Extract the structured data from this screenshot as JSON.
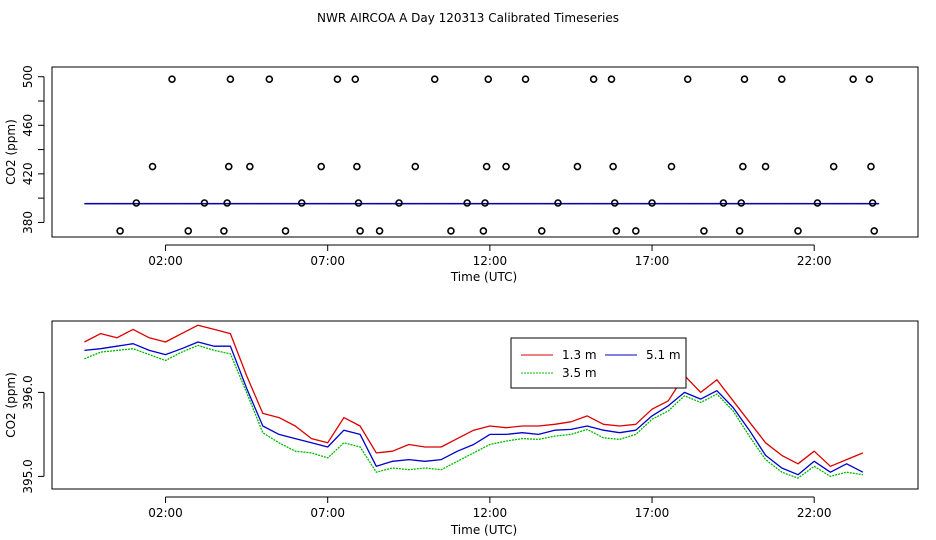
{
  "title": "NWR AIRCOA A  Day 120313  Calibrated Timeseries",
  "colors": {
    "s1": "#dd0000",
    "s2": "#00bb00",
    "s3": "#0000cc"
  },
  "chart_data": [
    {
      "type": "scatter",
      "title": "NWR AIRCOA A  Day 120313  Calibrated Timeseries",
      "xlabel": "Time (UTC)",
      "ylabel": "CO2 (ppm)",
      "xlim": [
        -1.5,
        25.2
      ],
      "ylim": [
        368,
        508
      ],
      "xticks": [
        2,
        7,
        12,
        17,
        22
      ],
      "xtick_labels": [
        "02:00",
        "07:00",
        "12:00",
        "17:00",
        "22:00"
      ],
      "yticks": [
        380,
        420,
        460,
        500
      ],
      "ytick_labels": [
        "380",
        "420",
        "460",
        "500"
      ],
      "points": [
        {
          "x": 0.6,
          "y": 373
        },
        {
          "x": 1.1,
          "y": 396
        },
        {
          "x": 1.6,
          "y": 426
        },
        {
          "x": 2.2,
          "y": 498
        },
        {
          "x": 2.7,
          "y": 373
        },
        {
          "x": 3.2,
          "y": 396
        },
        {
          "x": 3.8,
          "y": 373
        },
        {
          "x": 3.9,
          "y": 396
        },
        {
          "x": 3.95,
          "y": 426
        },
        {
          "x": 4.0,
          "y": 498
        },
        {
          "x": 4.6,
          "y": 426
        },
        {
          "x": 5.2,
          "y": 498
        },
        {
          "x": 5.7,
          "y": 373
        },
        {
          "x": 6.2,
          "y": 396
        },
        {
          "x": 6.8,
          "y": 426
        },
        {
          "x": 7.3,
          "y": 498
        },
        {
          "x": 7.85,
          "y": 498
        },
        {
          "x": 7.9,
          "y": 426
        },
        {
          "x": 7.95,
          "y": 396
        },
        {
          "x": 8.0,
          "y": 373
        },
        {
          "x": 8.6,
          "y": 373
        },
        {
          "x": 9.2,
          "y": 396
        },
        {
          "x": 9.7,
          "y": 426
        },
        {
          "x": 10.3,
          "y": 498
        },
        {
          "x": 10.8,
          "y": 373
        },
        {
          "x": 11.3,
          "y": 396
        },
        {
          "x": 11.8,
          "y": 373
        },
        {
          "x": 11.85,
          "y": 396
        },
        {
          "x": 11.9,
          "y": 426
        },
        {
          "x": 11.95,
          "y": 498
        },
        {
          "x": 12.5,
          "y": 426
        },
        {
          "x": 13.1,
          "y": 498
        },
        {
          "x": 13.6,
          "y": 373
        },
        {
          "x": 14.1,
          "y": 396
        },
        {
          "x": 14.7,
          "y": 426
        },
        {
          "x": 15.2,
          "y": 498
        },
        {
          "x": 15.75,
          "y": 498
        },
        {
          "x": 15.8,
          "y": 426
        },
        {
          "x": 15.85,
          "y": 396
        },
        {
          "x": 15.9,
          "y": 373
        },
        {
          "x": 16.5,
          "y": 373
        },
        {
          "x": 17.0,
          "y": 396
        },
        {
          "x": 17.6,
          "y": 426
        },
        {
          "x": 18.1,
          "y": 498
        },
        {
          "x": 18.6,
          "y": 373
        },
        {
          "x": 19.2,
          "y": 396
        },
        {
          "x": 19.7,
          "y": 373
        },
        {
          "x": 19.75,
          "y": 396
        },
        {
          "x": 19.8,
          "y": 426
        },
        {
          "x": 19.85,
          "y": 498
        },
        {
          "x": 20.5,
          "y": 426
        },
        {
          "x": 21.0,
          "y": 498
        },
        {
          "x": 21.5,
          "y": 373
        },
        {
          "x": 22.1,
          "y": 396
        },
        {
          "x": 22.6,
          "y": 426
        },
        {
          "x": 23.2,
          "y": 498
        },
        {
          "x": 23.7,
          "y": 498
        },
        {
          "x": 23.75,
          "y": 426
        },
        {
          "x": 23.8,
          "y": 396
        },
        {
          "x": 23.85,
          "y": 373
        }
      ],
      "lines": [
        {
          "name": "1.3 m",
          "x": [
            -0.5,
            24
          ],
          "y": [
            395.6,
            395.6
          ]
        },
        {
          "name": "3.5 m",
          "x": [
            -0.5,
            24
          ],
          "y": [
            395.3,
            395.3
          ]
        },
        {
          "name": "5.1 m",
          "x": [
            -0.5,
            24
          ],
          "y": [
            395.4,
            395.4
          ]
        }
      ]
    },
    {
      "type": "line",
      "xlabel": "Time (UTC)",
      "ylabel": "CO2 (ppm)",
      "xlim": [
        -1.5,
        25.2
      ],
      "ylim": [
        394.85,
        396.85
      ],
      "xticks": [
        2,
        7,
        12,
        17,
        22
      ],
      "xtick_labels": [
        "02:00",
        "07:00",
        "12:00",
        "17:00",
        "22:00"
      ],
      "yticks": [
        395.0,
        396.0
      ],
      "ytick_labels": [
        "395.0",
        "396.0"
      ],
      "legend": {
        "position": "top-center",
        "entries": [
          "1.3 m",
          "5.1 m",
          "3.5 m"
        ]
      },
      "series": [
        {
          "name": "1.3 m",
          "x": [
            -0.5,
            0,
            0.5,
            1,
            1.5,
            2,
            2.5,
            3,
            3.5,
            4,
            4.5,
            5,
            5.5,
            6,
            6.5,
            7,
            7.5,
            8,
            8.5,
            9,
            9.5,
            10,
            10.5,
            11,
            11.5,
            12,
            12.5,
            13,
            13.5,
            14,
            14.5,
            15,
            15.5,
            16,
            16.5,
            17,
            17.5,
            18,
            18.5,
            19,
            19.5,
            20,
            20.5,
            21,
            21.5,
            22,
            22.5,
            23,
            23.5
          ],
          "y": [
            396.6,
            396.7,
            396.65,
            396.75,
            396.65,
            396.6,
            396.7,
            396.8,
            396.75,
            396.7,
            396.2,
            395.75,
            395.7,
            395.6,
            395.45,
            395.4,
            395.7,
            395.6,
            395.28,
            395.3,
            395.38,
            395.35,
            395.35,
            395.45,
            395.55,
            395.6,
            395.58,
            395.6,
            395.6,
            395.62,
            395.65,
            395.72,
            395.62,
            395.6,
            395.62,
            395.8,
            395.9,
            396.2,
            396.0,
            396.15,
            395.9,
            395.65,
            395.4,
            395.25,
            395.15,
            395.3,
            395.12,
            395.2,
            395.28
          ]
        },
        {
          "name": "3.5 m",
          "x": [
            -0.5,
            0,
            0.5,
            1,
            1.5,
            2,
            2.5,
            3,
            3.5,
            4,
            4.5,
            5,
            5.5,
            6,
            6.5,
            7,
            7.5,
            8,
            8.5,
            9,
            9.5,
            10,
            10.5,
            11,
            11.5,
            12,
            12.5,
            13,
            13.5,
            14,
            14.5,
            15,
            15.5,
            16,
            16.5,
            17,
            17.5,
            18,
            18.5,
            19,
            19.5,
            20,
            20.5,
            21,
            21.5,
            22,
            22.5,
            23,
            23.5
          ],
          "y": [
            396.4,
            396.48,
            396.5,
            396.52,
            396.45,
            396.38,
            396.48,
            396.56,
            396.5,
            396.46,
            396.0,
            395.52,
            395.4,
            395.3,
            395.28,
            395.22,
            395.4,
            395.35,
            395.05,
            395.1,
            395.08,
            395.1,
            395.08,
            395.18,
            395.28,
            395.38,
            395.42,
            395.45,
            395.44,
            395.48,
            395.5,
            395.56,
            395.46,
            395.44,
            395.5,
            395.68,
            395.78,
            395.96,
            395.88,
            395.98,
            395.78,
            395.48,
            395.2,
            395.05,
            394.98,
            395.12,
            395.0,
            395.05,
            395.02
          ]
        },
        {
          "name": "5.1 m",
          "x": [
            -0.5,
            0,
            0.5,
            1,
            1.5,
            2,
            2.5,
            3,
            3.5,
            4,
            4.5,
            5,
            5.5,
            6,
            6.5,
            7,
            7.5,
            8,
            8.5,
            9,
            9.5,
            10,
            10.5,
            11,
            11.5,
            12,
            12.5,
            13,
            13.5,
            14,
            14.5,
            15,
            15.5,
            16,
            16.5,
            17,
            17.5,
            18,
            18.5,
            19,
            19.5,
            20,
            20.5,
            21,
            21.5,
            22,
            22.5,
            23,
            23.5
          ],
          "y": [
            396.5,
            396.52,
            396.55,
            396.58,
            396.5,
            396.45,
            396.52,
            396.6,
            396.55,
            396.55,
            396.05,
            395.6,
            395.5,
            395.45,
            395.4,
            395.35,
            395.55,
            395.5,
            395.12,
            395.18,
            395.2,
            395.18,
            395.2,
            395.3,
            395.38,
            395.5,
            395.5,
            395.52,
            395.5,
            395.55,
            395.56,
            395.6,
            395.55,
            395.52,
            395.55,
            395.72,
            395.84,
            396.0,
            395.92,
            396.02,
            395.82,
            395.55,
            395.25,
            395.1,
            395.02,
            395.18,
            395.05,
            395.15,
            395.05
          ]
        }
      ]
    }
  ]
}
